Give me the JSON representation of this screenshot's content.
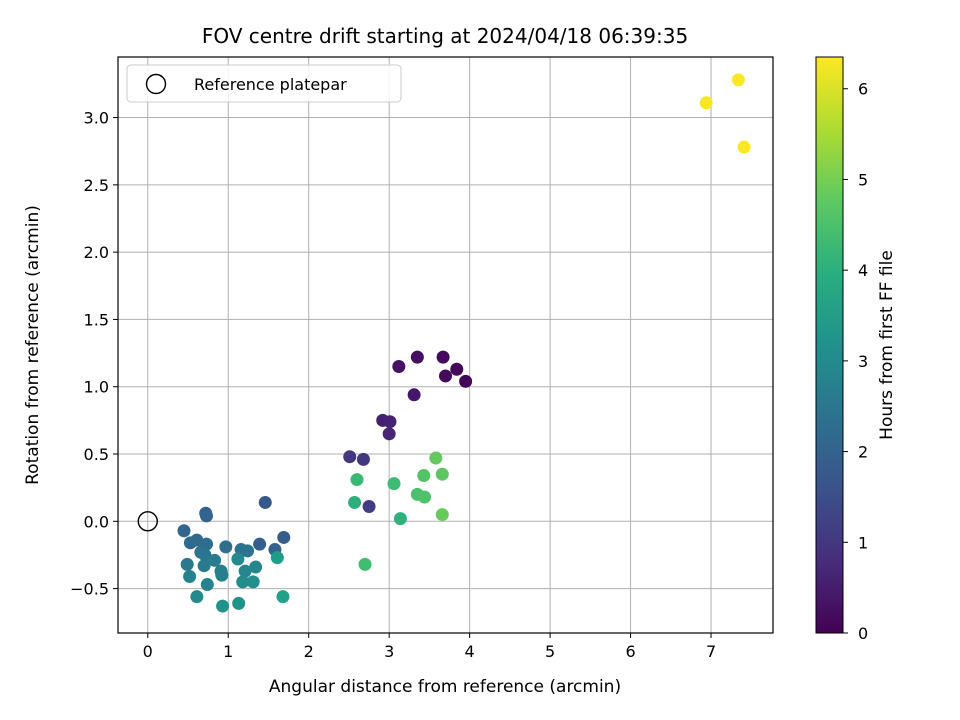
{
  "chart_data": {
    "type": "scatter",
    "title": "FOV centre drift starting at 2024/04/18 06:39:35",
    "xlabel": "Angular distance from reference (arcmin)",
    "ylabel": "Rotation from reference (arcmin)",
    "xlim": [
      -0.37,
      7.77
    ],
    "ylim": [
      -0.83,
      3.45
    ],
    "x_ticks": [
      0,
      1,
      2,
      3,
      4,
      5,
      6,
      7
    ],
    "y_ticks": [
      -0.5,
      0.0,
      0.5,
      1.0,
      1.5,
      2.0,
      2.5,
      3.0
    ],
    "x_tick_labels": [
      "0",
      "1",
      "2",
      "3",
      "4",
      "5",
      "6",
      "7"
    ],
    "y_tick_labels": [
      "−0.5",
      "0.0",
      "0.5",
      "1.0",
      "1.5",
      "2.0",
      "2.5",
      "3.0"
    ],
    "grid": true,
    "colormap": "viridis",
    "colorbar": {
      "label": "Hours from first FF file",
      "range": [
        0,
        6.35
      ],
      "ticks": [
        0,
        1,
        2,
        3,
        4,
        5,
        6
      ],
      "tick_labels": [
        "0",
        "1",
        "2",
        "3",
        "4",
        "5",
        "6"
      ]
    },
    "legend": {
      "placement": "upper-left",
      "entries": [
        {
          "marker": "open-circle",
          "label": "Reference platepar"
        }
      ]
    },
    "reference_point": {
      "x": 0,
      "y": 0
    },
    "points": [
      {
        "x": 3.95,
        "y": 1.04,
        "hours": 0.05
      },
      {
        "x": 3.84,
        "y": 1.13,
        "hours": 0.1
      },
      {
        "x": 3.7,
        "y": 1.08,
        "hours": 0.15
      },
      {
        "x": 3.67,
        "y": 1.22,
        "hours": 0.2
      },
      {
        "x": 3.35,
        "y": 1.22,
        "hours": 0.25
      },
      {
        "x": 3.12,
        "y": 1.15,
        "hours": 0.3
      },
      {
        "x": 3.31,
        "y": 0.94,
        "hours": 0.4
      },
      {
        "x": 2.92,
        "y": 0.75,
        "hours": 0.55
      },
      {
        "x": 3.01,
        "y": 0.74,
        "hours": 0.6
      },
      {
        "x": 3.0,
        "y": 0.65,
        "hours": 0.65
      },
      {
        "x": 2.51,
        "y": 0.48,
        "hours": 1.0
      },
      {
        "x": 2.68,
        "y": 0.46,
        "hours": 1.05
      },
      {
        "x": 2.75,
        "y": 0.11,
        "hours": 1.15
      },
      {
        "x": 1.46,
        "y": 0.14,
        "hours": 1.75
      },
      {
        "x": 1.69,
        "y": -0.12,
        "hours": 1.85
      },
      {
        "x": 1.39,
        "y": -0.17,
        "hours": 1.9
      },
      {
        "x": 1.58,
        "y": -0.21,
        "hours": 1.95
      },
      {
        "x": 0.72,
        "y": 0.06,
        "hours": 2.0
      },
      {
        "x": 0.73,
        "y": 0.04,
        "hours": 2.05
      },
      {
        "x": 0.45,
        "y": -0.07,
        "hours": 2.1
      },
      {
        "x": 0.53,
        "y": -0.16,
        "hours": 2.15
      },
      {
        "x": 0.61,
        "y": -0.14,
        "hours": 2.2
      },
      {
        "x": 0.73,
        "y": -0.17,
        "hours": 2.25
      },
      {
        "x": 0.97,
        "y": -0.19,
        "hours": 2.3
      },
      {
        "x": 1.16,
        "y": -0.21,
        "hours": 2.35
      },
      {
        "x": 1.24,
        "y": -0.22,
        "hours": 2.4
      },
      {
        "x": 0.66,
        "y": -0.23,
        "hours": 2.45
      },
      {
        "x": 0.71,
        "y": -0.25,
        "hours": 2.5
      },
      {
        "x": 0.49,
        "y": -0.32,
        "hours": 2.55
      },
      {
        "x": 0.7,
        "y": -0.33,
        "hours": 2.6
      },
      {
        "x": 0.83,
        "y": -0.29,
        "hours": 2.65
      },
      {
        "x": 0.91,
        "y": -0.37,
        "hours": 2.7
      },
      {
        "x": 0.92,
        "y": -0.4,
        "hours": 2.75
      },
      {
        "x": 0.52,
        "y": -0.41,
        "hours": 2.8
      },
      {
        "x": 0.74,
        "y": -0.47,
        "hours": 2.85
      },
      {
        "x": 1.34,
        "y": -0.34,
        "hours": 2.9
      },
      {
        "x": 1.21,
        "y": -0.37,
        "hours": 2.95
      },
      {
        "x": 1.12,
        "y": -0.28,
        "hours": 3.0
      },
      {
        "x": 0.61,
        "y": -0.56,
        "hours": 3.05
      },
      {
        "x": 1.18,
        "y": -0.45,
        "hours": 3.1
      },
      {
        "x": 1.31,
        "y": -0.45,
        "hours": 3.15
      },
      {
        "x": 1.13,
        "y": -0.61,
        "hours": 3.2
      },
      {
        "x": 0.93,
        "y": -0.63,
        "hours": 3.25
      },
      {
        "x": 1.61,
        "y": -0.27,
        "hours": 3.5
      },
      {
        "x": 1.68,
        "y": -0.56,
        "hours": 3.6
      },
      {
        "x": 2.57,
        "y": 0.14,
        "hours": 4.0
      },
      {
        "x": 3.14,
        "y": 0.02,
        "hours": 4.05
      },
      {
        "x": 2.6,
        "y": 0.31,
        "hours": 4.3
      },
      {
        "x": 3.06,
        "y": 0.28,
        "hours": 4.35
      },
      {
        "x": 2.7,
        "y": -0.32,
        "hours": 4.4
      },
      {
        "x": 3.35,
        "y": 0.2,
        "hours": 4.5
      },
      {
        "x": 3.44,
        "y": 0.18,
        "hours": 4.55
      },
      {
        "x": 3.43,
        "y": 0.34,
        "hours": 4.6
      },
      {
        "x": 3.66,
        "y": 0.35,
        "hours": 4.7
      },
      {
        "x": 3.58,
        "y": 0.47,
        "hours": 4.8
      },
      {
        "x": 3.66,
        "y": 0.05,
        "hours": 4.85
      },
      {
        "x": 6.94,
        "y": 3.11,
        "hours": 6.3
      },
      {
        "x": 7.34,
        "y": 3.28,
        "hours": 6.33
      },
      {
        "x": 7.41,
        "y": 2.78,
        "hours": 6.35
      }
    ]
  }
}
